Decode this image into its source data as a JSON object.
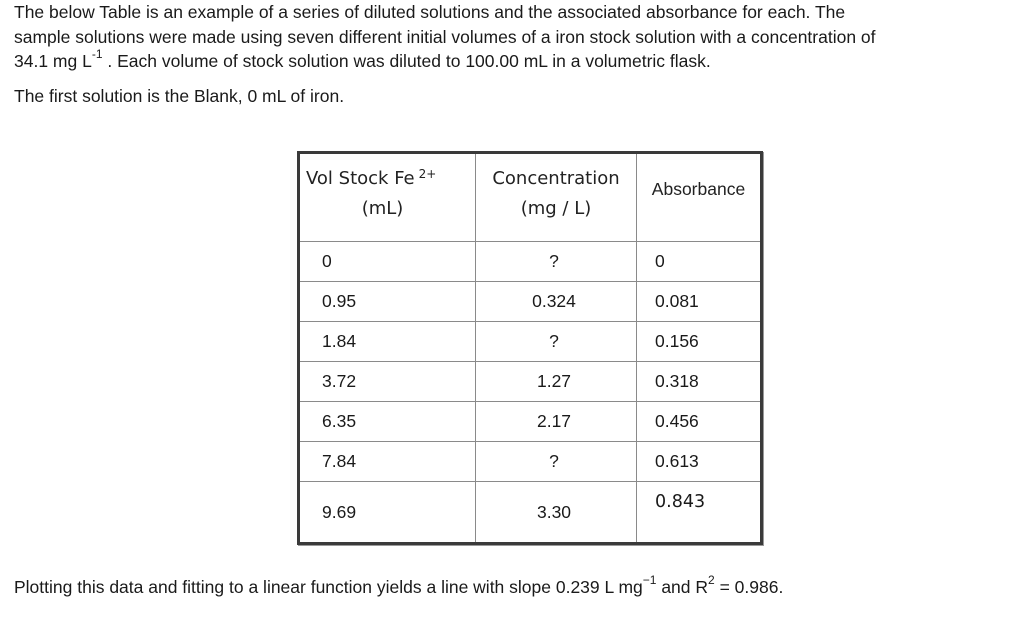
{
  "intro": {
    "line1": "The below Table is an example of a series of diluted solutions and the associated absorbance for each.  The",
    "line2": "sample solutions were made using seven different initial volumes of a iron stock solution with a concentration of",
    "line3_prefix": "34.1 mg L",
    "line3_sup": "-1",
    "line3_suffix": "  .  Each volume of stock solution was diluted to 100.00 mL in a volumetric flask."
  },
  "blank_line": "The first solution is the Blank, 0 mL of iron.",
  "table": {
    "headers": {
      "vol_line1": "Vol Stock Fe",
      "vol_sup": "2+",
      "vol_line2": "(mL)",
      "conc_line1": "Concentration",
      "conc_line2": "(mg / L)",
      "abs": "Absorbance"
    },
    "rows": [
      {
        "vol": "0",
        "conc": "?",
        "abs": "0"
      },
      {
        "vol": "0.95",
        "conc": "0.324",
        "abs": "0.081"
      },
      {
        "vol": "1.84",
        "conc": "?",
        "abs": "0.156"
      },
      {
        "vol": "3.72",
        "conc": "1.27",
        "abs": "0.318"
      },
      {
        "vol": "6.35",
        "conc": "2.17",
        "abs": "0.456"
      },
      {
        "vol": "7.84",
        "conc": "?",
        "abs": "0.613"
      },
      {
        "vol": "9.69",
        "conc": "3.30",
        "abs": "0.843"
      }
    ]
  },
  "conclusion": {
    "prefix": "Plotting this data and fitting to a linear function yields a line with slope 0.239  L mg",
    "sup1": "−1",
    "mid": " and R",
    "sup2": "2",
    "suffix": " = 0.986."
  }
}
